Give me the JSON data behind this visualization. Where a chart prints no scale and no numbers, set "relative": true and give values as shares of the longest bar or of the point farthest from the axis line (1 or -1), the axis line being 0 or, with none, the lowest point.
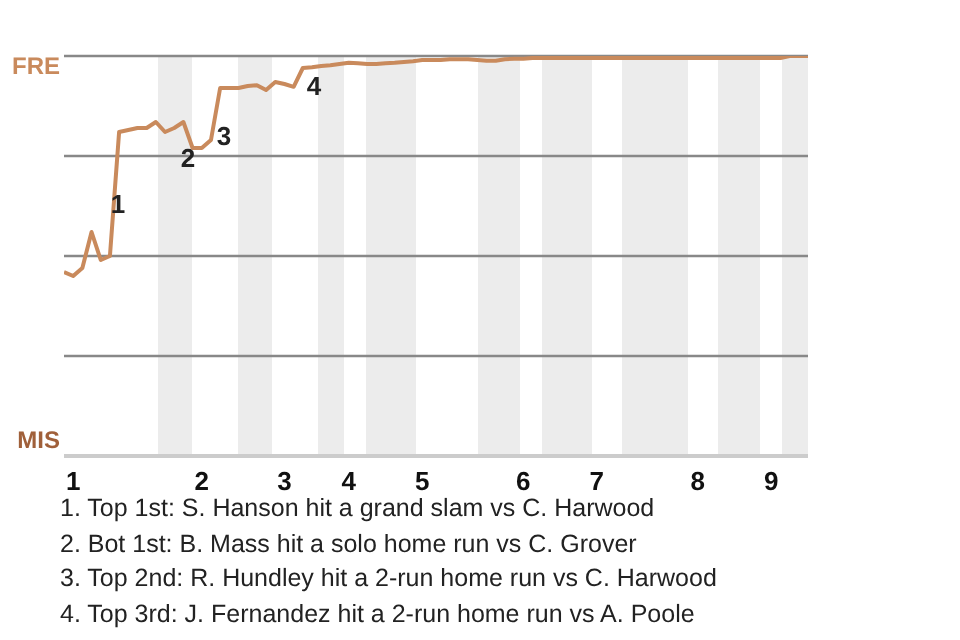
{
  "chart_data": {
    "type": "line",
    "relative": true,
    "categories": [
      null,
      "1",
      null,
      null,
      null,
      null,
      null,
      null,
      null,
      null,
      null,
      null,
      null,
      null,
      null,
      "2",
      null,
      null,
      null,
      null,
      null,
      null,
      null,
      null,
      "3",
      null,
      null,
      null,
      null,
      null,
      null,
      "4",
      null,
      null,
      null,
      null,
      null,
      null,
      null,
      "5",
      null,
      null,
      null,
      null,
      null,
      null,
      null,
      null,
      null,
      null,
      "6",
      null,
      null,
      null,
      null,
      null,
      null,
      null,
      "7",
      null,
      null,
      null,
      null,
      null,
      null,
      null,
      null,
      null,
      null,
      "8",
      null,
      null,
      null,
      null,
      null,
      null,
      null,
      "9",
      null,
      null,
      null,
      null
    ],
    "series": [
      {
        "color": "#c98a5c",
        "values": [
          0.46,
          0.45,
          0.47,
          0.56,
          0.49,
          0.5,
          0.81,
          0.815,
          0.82,
          0.82,
          0.835,
          0.81,
          0.82,
          0.835,
          0.77,
          0.77,
          0.79,
          0.92,
          0.92,
          0.92,
          0.925,
          0.927,
          0.915,
          0.935,
          0.93,
          0.923,
          0.97,
          0.972,
          0.975,
          0.977,
          0.98,
          0.983,
          0.982,
          0.98,
          0.98,
          0.982,
          0.983,
          0.985,
          0.987,
          0.99,
          0.99,
          0.99,
          0.992,
          0.992,
          0.992,
          0.99,
          0.988,
          0.988,
          0.992,
          0.993,
          0.993,
          0.995,
          0.995,
          0.995,
          0.995,
          0.995,
          0.995,
          0.995,
          0.995,
          0.995,
          0.995,
          0.995,
          0.995,
          0.995,
          0.995,
          0.995,
          0.995,
          0.995,
          0.995,
          0.995,
          0.995,
          0.995,
          0.995,
          0.995,
          0.995,
          0.995,
          0.995,
          0.995,
          0.995,
          1,
          1,
          1
        ]
      }
    ],
    "ref_lines": [
      {
        "axis": "y",
        "value": 0.25,
        "color": "#888888"
      },
      {
        "axis": "y",
        "value": 0.5,
        "color": "#888888"
      },
      {
        "axis": "y",
        "value": 0.75,
        "color": "#888888"
      },
      {
        "axis": "y",
        "value": 1,
        "color": "#888888"
      }
    ],
    "annotations": [
      "FRE",
      "MIS",
      "1",
      "2",
      "3",
      "4",
      "1. Top 1st: S. Hanson hit a grand slam vs C. Harwood",
      "2. Bot 1st: B. Mass hit a solo home run vs C. Grover",
      "3. Top 2nd: R. Hundley hit a 2-run home run vs C. Harwood",
      "4. Top 3rd: J. Fernandez hit a 2-run home run vs A. Poole"
    ],
    "marker": "none",
    "line_style": "solid"
  }
}
